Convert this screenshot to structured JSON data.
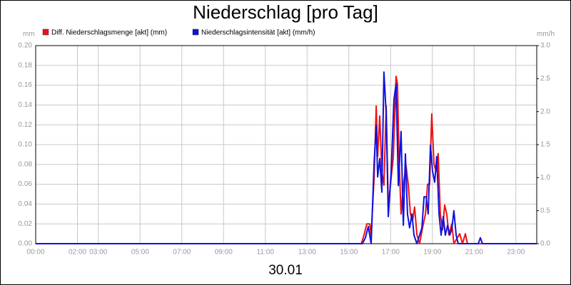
{
  "chart_data": {
    "type": "line",
    "title": "Niederschlag [pro Tag]",
    "xlabel": "30.01",
    "ylabel": "mm",
    "y2label": "mm/h",
    "xlim": [
      0,
      24
    ],
    "xticks": [
      {
        "value": 0,
        "label": "00:00"
      },
      {
        "value": 2,
        "label": "02:00"
      },
      {
        "value": 3,
        "label": "03:00"
      },
      {
        "value": 5,
        "label": "05:00"
      },
      {
        "value": 7,
        "label": "07:00"
      },
      {
        "value": 9,
        "label": "09:00"
      },
      {
        "value": 11,
        "label": "11:00"
      },
      {
        "value": 13,
        "label": "13:00"
      },
      {
        "value": 15,
        "label": "15:00"
      },
      {
        "value": 17,
        "label": "17:00"
      },
      {
        "value": 19,
        "label": "19:00"
      },
      {
        "value": 21,
        "label": "21:00"
      },
      {
        "value": 23,
        "label": "23:00"
      }
    ],
    "ylim": [
      0,
      0.2
    ],
    "yticks": [
      {
        "value": 0,
        "label": "0.00"
      },
      0.02,
      0.04,
      0.06,
      0.08,
      {
        "value": 0.1,
        "label": "0.10"
      },
      0.12,
      0.14,
      0.16,
      0.18,
      {
        "value": 0.2,
        "label": "0.20"
      }
    ],
    "y2lim": [
      0,
      3
    ],
    "y2ticks": [
      {
        "value": 0,
        "label": "0.0"
      },
      0.5,
      {
        "value": 1,
        "label": "1.0"
      },
      1.5,
      {
        "value": 2,
        "label": "2.0"
      },
      2.5,
      {
        "value": 3,
        "label": "3.0"
      }
    ],
    "grid": true,
    "series": [
      {
        "name": "Diff. Niederschlagsmenge [akt] (mm)",
        "color": "#ee1111",
        "x": [
          0,
          15.6,
          15.73,
          15.86,
          16.0,
          16.07,
          16.21,
          16.31,
          16.38,
          16.48,
          16.58,
          16.68,
          16.79,
          16.89,
          16.99,
          17.13,
          17.26,
          17.33,
          17.4,
          17.5,
          17.61,
          17.74,
          17.85,
          17.95,
          18.05,
          18.15,
          18.26,
          18.39,
          18.53,
          18.67,
          18.77,
          18.87,
          18.97,
          19.08,
          19.18,
          19.28,
          19.38,
          19.49,
          19.59,
          19.69,
          19.79,
          19.93,
          20.03,
          20.31,
          20.44,
          20.58,
          20.68,
          24
        ],
        "values": [
          0,
          0,
          0.009,
          0.02,
          0.02,
          0.009,
          0.066,
          0.139,
          0.088,
          0.129,
          0.073,
          0.059,
          0.139,
          0.037,
          0.059,
          0.088,
          0.169,
          0.161,
          0.088,
          0.03,
          0.059,
          0.079,
          0.059,
          0.03,
          0.023,
          0.037,
          0.009,
          0,
          0.016,
          0.03,
          0.06,
          0.06,
          0.131,
          0.08,
          0.073,
          0.091,
          0.03,
          0.014,
          0.039,
          0.03,
          0.009,
          0.02,
          0,
          0.01,
          0,
          0.01,
          0,
          0
        ]
      },
      {
        "name": "Niederschlagsintensität [akt] (mm/h)",
        "color": "#1111dd",
        "axis": "y2",
        "x": [
          0,
          15.65,
          15.79,
          15.93,
          16.07,
          16.21,
          16.31,
          16.38,
          16.48,
          16.58,
          16.68,
          16.79,
          16.89,
          17.03,
          17.16,
          17.26,
          17.37,
          17.5,
          17.61,
          17.71,
          17.81,
          17.91,
          18.02,
          18.12,
          18.26,
          18.39,
          18.5,
          18.6,
          18.7,
          18.8,
          18.91,
          19.01,
          19.11,
          19.21,
          19.32,
          19.42,
          19.52,
          19.62,
          19.73,
          19.83,
          19.93,
          20.03,
          20.14,
          20.24,
          21.2,
          21.3,
          21.4,
          24
        ],
        "values": [
          0,
          0,
          0.09,
          0.26,
          0,
          1.21,
          1.79,
          1.01,
          1.29,
          0.78,
          2.6,
          1.96,
          0.41,
          1.1,
          2.18,
          2.42,
          0.88,
          1.7,
          0.28,
          1.36,
          0.45,
          0.24,
          0.45,
          0.13,
          0,
          0.13,
          0.24,
          0.71,
          0.71,
          0.45,
          1.49,
          1.1,
          0.93,
          1.32,
          0.45,
          0.13,
          0.41,
          0.13,
          0.28,
          0.13,
          0.22,
          0.5,
          0.13,
          0,
          0,
          0.09,
          0,
          0
        ]
      }
    ]
  }
}
